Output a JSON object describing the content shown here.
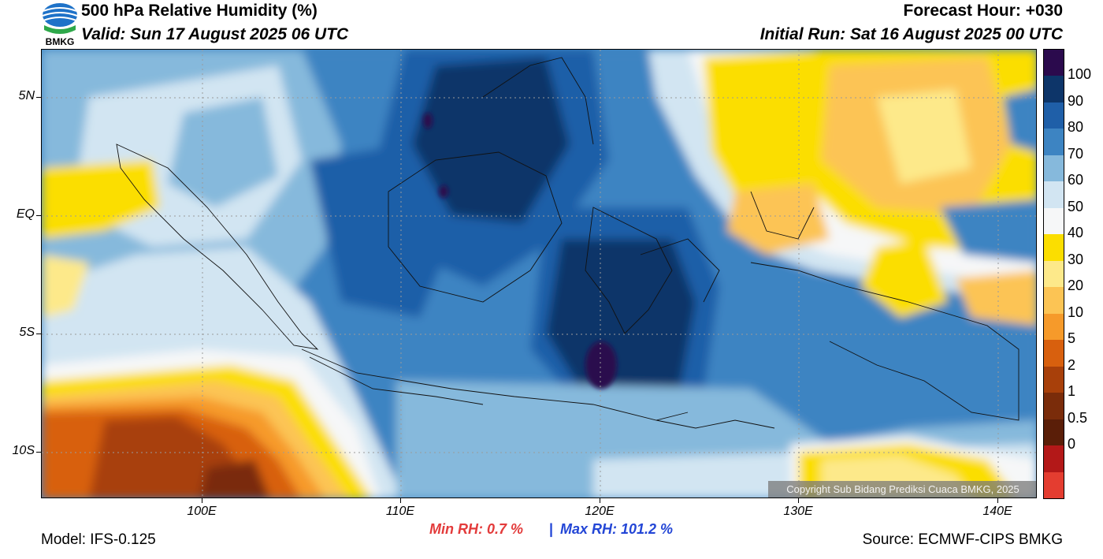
{
  "header": {
    "title": "500 hPa Relative Humidity (%)",
    "valid": "Valid: Sun 17 August 2025 06 UTC",
    "forecast_hour": "Forecast Hour: +030",
    "initial_run": "Initial Run: Sat 16 August 2025 00 UTC",
    "logo_text": "BMKG"
  },
  "map": {
    "lat_labels": [
      "5N",
      "EQ",
      "5S",
      "10S"
    ],
    "lon_labels": [
      "100E",
      "110E",
      "120E",
      "130E",
      "140E"
    ],
    "copyright": "Copyright Sub Bidang Prediksi Cuaca BMKG, 2025"
  },
  "colorbar": {
    "labels": [
      "100",
      "90",
      "80",
      "70",
      "60",
      "50",
      "40",
      "30",
      "20",
      "10",
      "5",
      "2",
      "1",
      "0.5",
      "0"
    ],
    "colors": [
      "#2b0a4d",
      "#0d3569",
      "#1f5fa8",
      "#3d84c2",
      "#86b9dc",
      "#d2e5f2",
      "#f6f7f8",
      "#fbde00",
      "#fde98a",
      "#fcc454",
      "#f69a2a",
      "#d8600e",
      "#a8400a",
      "#7a2c0a",
      "#5a1e08",
      "#b31818",
      "#e43d30"
    ]
  },
  "footer": {
    "model": "Model: IFS-0.125",
    "min_rh": "Min RH:   0.7 %",
    "max_rh": "Max RH: 101.2 %",
    "separator": "|",
    "source": "Source: ECMWF-CIPS BMKG"
  }
}
